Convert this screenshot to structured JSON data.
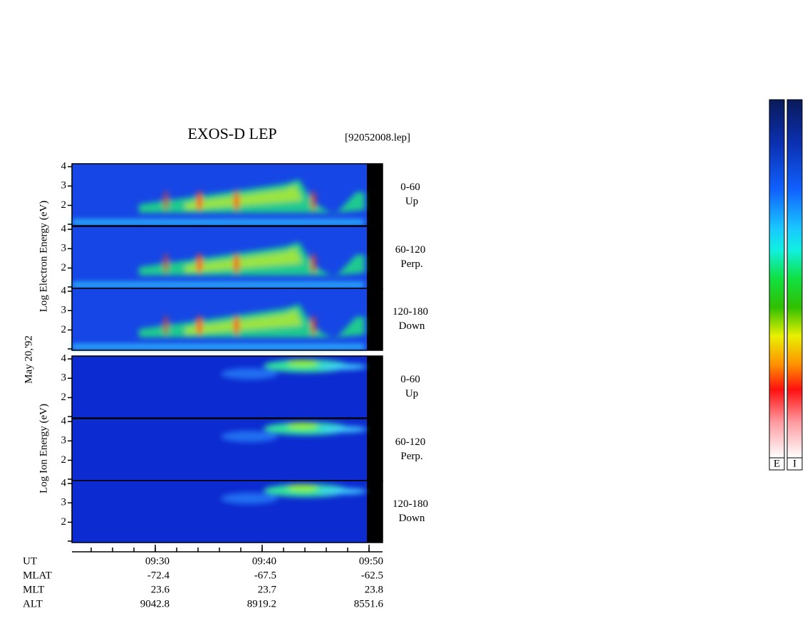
{
  "title": "EXOS-D LEP",
  "file": "[92052008.lep]",
  "date": "May 20,'92",
  "electron_axis_label": "Log Electron Energy (eV)",
  "ion_axis_label": "Log Ion Energy (eV)",
  "panels": [
    {
      "angle": "0-60",
      "direction": "Up",
      "yticks": [
        4,
        3,
        2
      ]
    },
    {
      "angle": "60-120",
      "direction": "Perp.",
      "yticks": [
        4,
        3,
        2
      ]
    },
    {
      "angle": "120-180",
      "direction": "Down",
      "yticks": [
        4,
        3,
        2
      ]
    },
    {
      "angle": "0-60",
      "direction": "Up",
      "yticks": [
        4,
        3,
        2
      ]
    },
    {
      "angle": "60-120",
      "direction": "Perp.",
      "yticks": [
        4,
        3,
        2
      ]
    },
    {
      "angle": "120-180",
      "direction": "Down",
      "yticks": [
        4,
        3,
        2
      ]
    }
  ],
  "time_table": {
    "rows": [
      {
        "label": "UT",
        "values": [
          "09:30",
          "09:40",
          "09:50"
        ]
      },
      {
        "label": "MLAT",
        "values": [
          "-72.4",
          "-67.5",
          "-62.5"
        ]
      },
      {
        "label": "MLT",
        "values": [
          "23.6",
          "23.7",
          "23.8"
        ]
      },
      {
        "label": "ALT",
        "values": [
          "9042.8",
          "8919.2",
          "8551.6"
        ]
      }
    ]
  },
  "colorbars": [
    "E",
    "I"
  ]
}
